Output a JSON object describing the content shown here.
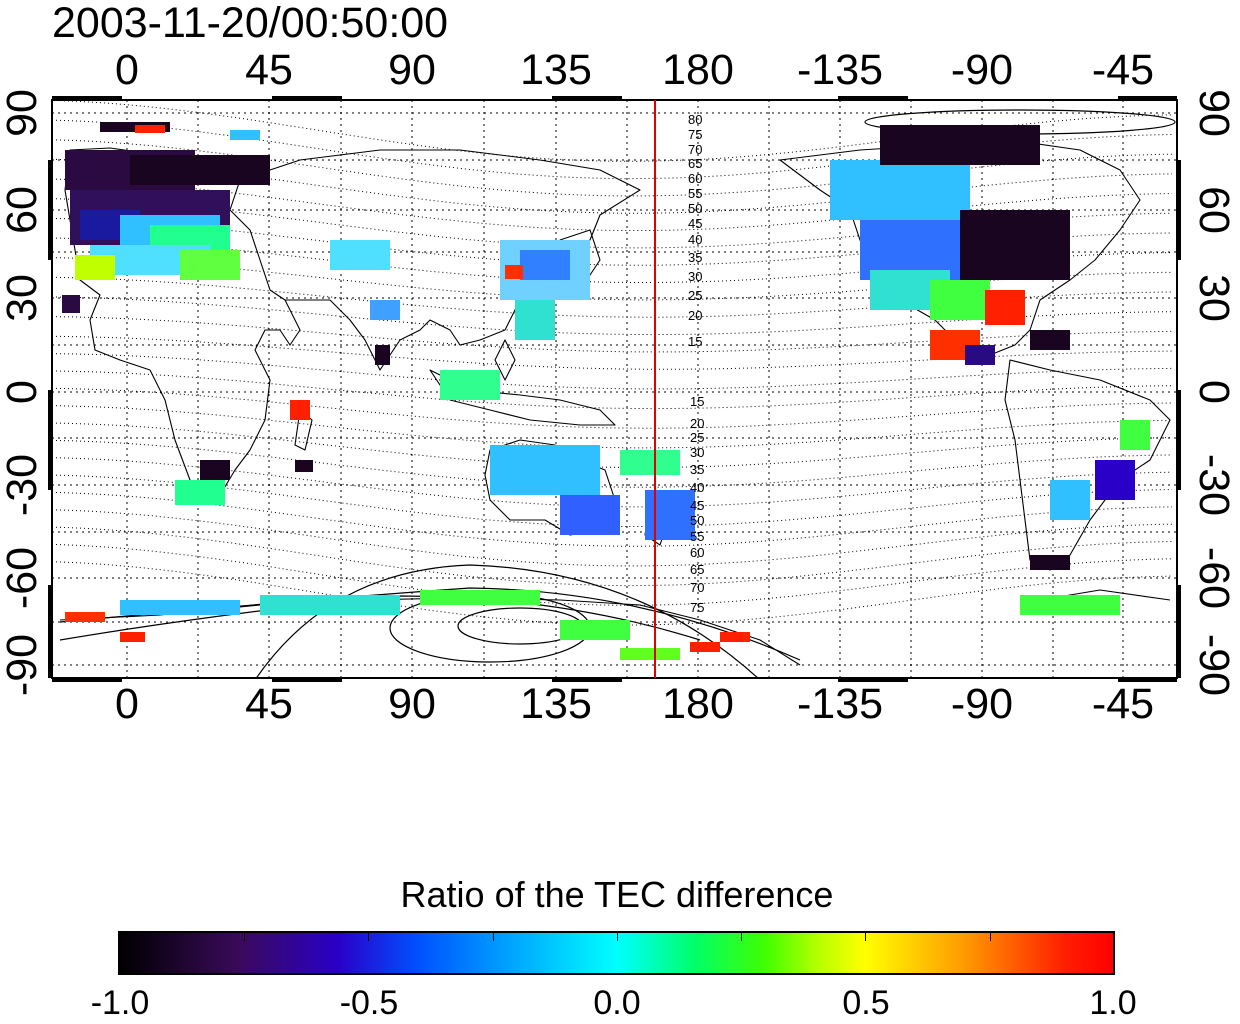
{
  "timestamp": "2003-11-20/00:50:00",
  "map": {
    "lon_ticks": [
      "0",
      "45",
      "90",
      "135",
      "180",
      "-135",
      "-90",
      "-45"
    ],
    "lat_ticks_left": [
      "90",
      "60",
      "30",
      "0",
      "-30",
      "-60",
      "-90"
    ],
    "lat_ticks_right": [
      "90",
      "60",
      "30",
      "0",
      "-30",
      "-60",
      "-90"
    ],
    "contour_labels_north": [
      "80",
      "75",
      "70",
      "65",
      "60",
      "55",
      "50",
      "45",
      "40",
      "35",
      "30",
      "25",
      "20",
      "15"
    ],
    "contour_labels_south": [
      "15",
      "20",
      "25",
      "30",
      "35",
      "40",
      "45",
      "50",
      "55",
      "60",
      "65",
      "70",
      "75"
    ],
    "terminator_color": "#e00000"
  },
  "colorbar": {
    "title": "Ratio of the TEC difference",
    "ticks": [
      "-1.0",
      "-0.5",
      "0.0",
      "0.5",
      "1.0"
    ],
    "range": [
      -1.0,
      1.0
    ],
    "colors": [
      "#000000",
      "#2a00c8",
      "#00ffff",
      "#ffff00",
      "#ff0000"
    ]
  }
}
